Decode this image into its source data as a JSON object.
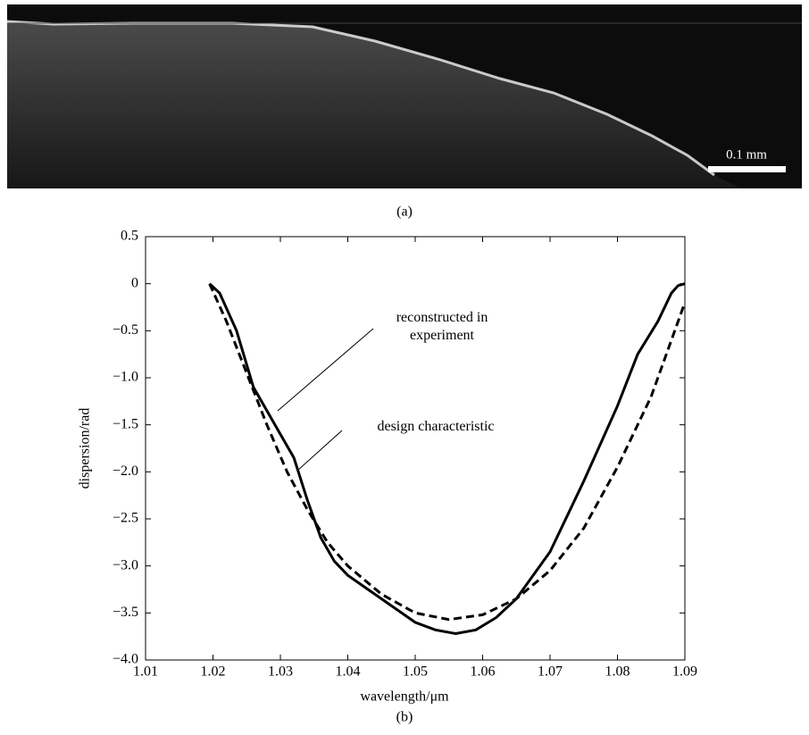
{
  "image_panel": {
    "scale_bar_label": "0.1 mm",
    "caption": "(a)"
  },
  "chart_data": {
    "type": "line",
    "caption": "(b)",
    "x_label": "wavelength/μm",
    "y_label": "dispersion/rad",
    "xlim": [
      1.01,
      1.09
    ],
    "xticks": [
      1.01,
      1.02,
      1.03,
      1.04,
      1.05,
      1.06,
      1.07,
      1.08,
      1.09
    ],
    "ylim": [
      -4.0,
      0.5
    ],
    "yticks": [
      0.5,
      0,
      {
        "value": -0.5,
        "label": "−0.5"
      },
      {
        "value": -1.0,
        "label": "−1.0"
      },
      {
        "value": -1.5,
        "label": "−1.5"
      },
      {
        "value": -2.0,
        "label": "−2.0"
      },
      {
        "value": -2.5,
        "label": "−2.5"
      },
      {
        "value": -3.0,
        "label": "−3.0"
      },
      {
        "value": -3.5,
        "label": "−3.5"
      },
      {
        "value": -4.0,
        "label": "−4.0"
      }
    ],
    "grid": false,
    "series": [
      {
        "name": "reconstructed in experiment",
        "color": "#000000",
        "dash": "solid",
        "x": [
          1.0195,
          1.021,
          1.0235,
          1.026,
          1.03,
          1.032,
          1.034,
          1.036,
          1.038,
          1.04,
          1.045,
          1.05,
          1.053,
          1.056,
          1.059,
          1.062,
          1.065,
          1.07,
          1.075,
          1.08,
          1.083,
          1.086,
          1.088,
          1.089,
          1.09
        ],
        "values": [
          0,
          -0.1,
          -0.5,
          -1.1,
          -1.6,
          -1.85,
          -2.3,
          -2.7,
          -2.95,
          -3.1,
          -3.35,
          -3.6,
          -3.68,
          -3.72,
          -3.68,
          -3.55,
          -3.35,
          -2.85,
          -2.1,
          -1.3,
          -0.75,
          -0.4,
          -0.1,
          -0.02,
          0
        ]
      },
      {
        "name": "design characteristic",
        "color": "#000000",
        "dash": "dashed",
        "x": [
          1.0195,
          1.022,
          1.025,
          1.028,
          1.031,
          1.034,
          1.037,
          1.04,
          1.045,
          1.05,
          1.055,
          1.06,
          1.065,
          1.07,
          1.075,
          1.08,
          1.085,
          1.088,
          1.09
        ],
        "values": [
          0,
          -0.4,
          -0.95,
          -1.5,
          -2.0,
          -2.4,
          -2.75,
          -3.0,
          -3.3,
          -3.5,
          -3.57,
          -3.52,
          -3.35,
          -3.05,
          -2.6,
          -1.95,
          -1.2,
          -0.6,
          -0.2
        ]
      }
    ]
  }
}
